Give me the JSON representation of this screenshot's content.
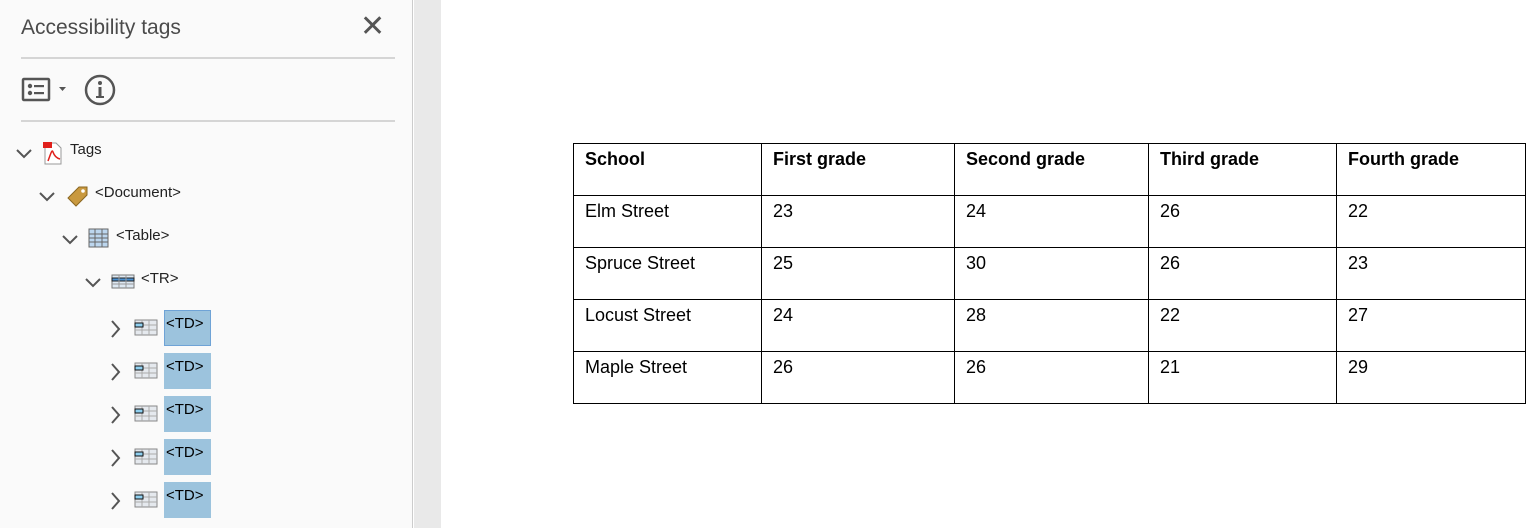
{
  "panel": {
    "title": "Accessibility tags",
    "close_icon": "close-icon",
    "toolbar": {
      "options_icon": "options-list-icon",
      "info_icon": "info-icon"
    },
    "tree": [
      {
        "label": "Tags",
        "icon": "pdf-icon",
        "expanded": true
      },
      {
        "label": "<Document>",
        "icon": "tag-icon",
        "expanded": true
      },
      {
        "label": "<Table>",
        "icon": "table-icon",
        "expanded": true
      },
      {
        "label": "<TR>",
        "icon": "table-row-icon",
        "expanded": true
      },
      {
        "label": "<TD>",
        "icon": "table-cell-icon",
        "expanded": false,
        "selected": true
      },
      {
        "label": "<TD>",
        "icon": "table-cell-icon",
        "expanded": false,
        "selected": true
      },
      {
        "label": "<TD>",
        "icon": "table-cell-icon",
        "expanded": false,
        "selected": true
      },
      {
        "label": "<TD>",
        "icon": "table-cell-icon",
        "expanded": false,
        "selected": true
      },
      {
        "label": "<TD>",
        "icon": "table-cell-icon",
        "expanded": false,
        "selected": true
      }
    ]
  },
  "document_table": {
    "headers": [
      "School",
      "First grade",
      "Second grade",
      "Third grade",
      "Fourth grade"
    ],
    "rows": [
      [
        "Elm Street",
        "23",
        "24",
        "26",
        "22"
      ],
      [
        "Spruce Street",
        "25",
        "30",
        "26",
        "23"
      ],
      [
        "Locust Street",
        "24",
        "28",
        "22",
        "27"
      ],
      [
        "Maple Street",
        "26",
        "26",
        "21",
        "29"
      ]
    ]
  },
  "colors": {
    "selection": "#9cc3dd",
    "panel_bg": "#fafafa"
  }
}
